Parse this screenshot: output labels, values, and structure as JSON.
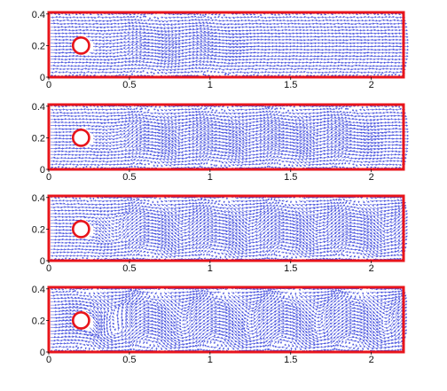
{
  "chart_data": {
    "type": "quiver",
    "colors": {
      "frame": "#e8141b",
      "cylinder": "#e8141b",
      "vectors": "#1f2bd6",
      "axes": "#111111"
    },
    "xlim": [
      0,
      2.2
    ],
    "ylim": [
      0,
      0.41
    ],
    "x_ticks": [
      {
        "value": 0,
        "label": "0"
      },
      {
        "value": 0.5,
        "label": "0.5"
      },
      {
        "value": 1,
        "label": "1"
      },
      {
        "value": 1.5,
        "label": "1.5"
      },
      {
        "value": 2,
        "label": "2"
      }
    ],
    "y_ticks": [
      {
        "value": 0,
        "label": "0"
      },
      {
        "value": 0.2,
        "label": "0.2"
      },
      {
        "value": 0.4,
        "label": "0.4"
      }
    ],
    "cylinder": {
      "cx": 0.2,
      "cy": 0.2,
      "r": 0.05
    },
    "panels": [
      {
        "id": "panel-1",
        "wake_start": 0.5,
        "wake_end": 0.95,
        "amplitude": 0.55
      },
      {
        "id": "panel-2",
        "wake_start": 0.5,
        "wake_end": 1.8,
        "amplitude": 0.75
      },
      {
        "id": "panel-3",
        "wake_start": 0.45,
        "wake_end": 2.2,
        "amplitude": 0.95
      },
      {
        "id": "panel-4",
        "wake_start": 0.3,
        "wake_end": 2.2,
        "amplitude": 1.4
      }
    ]
  }
}
